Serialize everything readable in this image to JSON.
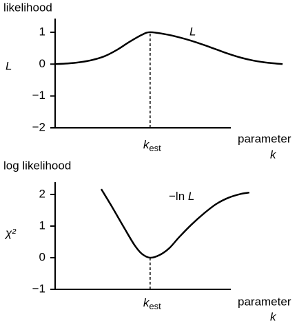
{
  "chart_data": [
    {
      "type": "line",
      "title": "likelihood",
      "ylabel": "L",
      "xlabel": "parameter",
      "xlabel_symbol": "k",
      "annotation": "L",
      "xlim": [
        0,
        10
      ],
      "ylim": [
        -2,
        1.43
      ],
      "yticks": [
        {
          "value": -2,
          "label": "−2"
        },
        {
          "value": -1,
          "label": "−1"
        },
        0,
        1
      ],
      "xticks": [
        {
          "value": 3.83,
          "label": "kest"
        }
      ],
      "color": "#000000",
      "x": [
        0,
        0.5,
        1,
        1.5,
        2,
        2.5,
        3,
        3.5,
        3.83,
        4.5,
        5,
        5.5,
        6,
        6.5,
        7,
        7.5,
        8,
        8.5,
        9.17
      ],
      "values": [
        0,
        0.02,
        0.06,
        0.13,
        0.25,
        0.45,
        0.7,
        0.92,
        1,
        0.93,
        0.84,
        0.73,
        0.6,
        0.46,
        0.32,
        0.2,
        0.11,
        0.05,
        0
      ]
    },
    {
      "type": "line",
      "title": "log likelihood",
      "ylabel": "χ²",
      "xlabel": "parameter",
      "xlabel_symbol": "k",
      "annotation": "−ln L",
      "xlim": [
        0,
        10
      ],
      "ylim": [
        -1,
        2.39
      ],
      "yticks": [
        {
          "value": -1,
          "label": "−1"
        },
        0,
        1,
        2
      ],
      "xticks": [
        {
          "value": 3.83,
          "label": "kest"
        }
      ],
      "color": "#000000",
      "x": [
        1.86,
        2.3,
        2.78,
        3.2,
        3.5,
        3.83,
        4.2,
        4.6,
        5,
        5.5,
        6,
        6.5,
        7,
        7.5,
        7.83
      ],
      "values": [
        2.17,
        1.6,
        0.95,
        0.4,
        0.12,
        0,
        0.08,
        0.3,
        0.65,
        1.05,
        1.4,
        1.7,
        1.9,
        2.02,
        2.06
      ]
    }
  ]
}
